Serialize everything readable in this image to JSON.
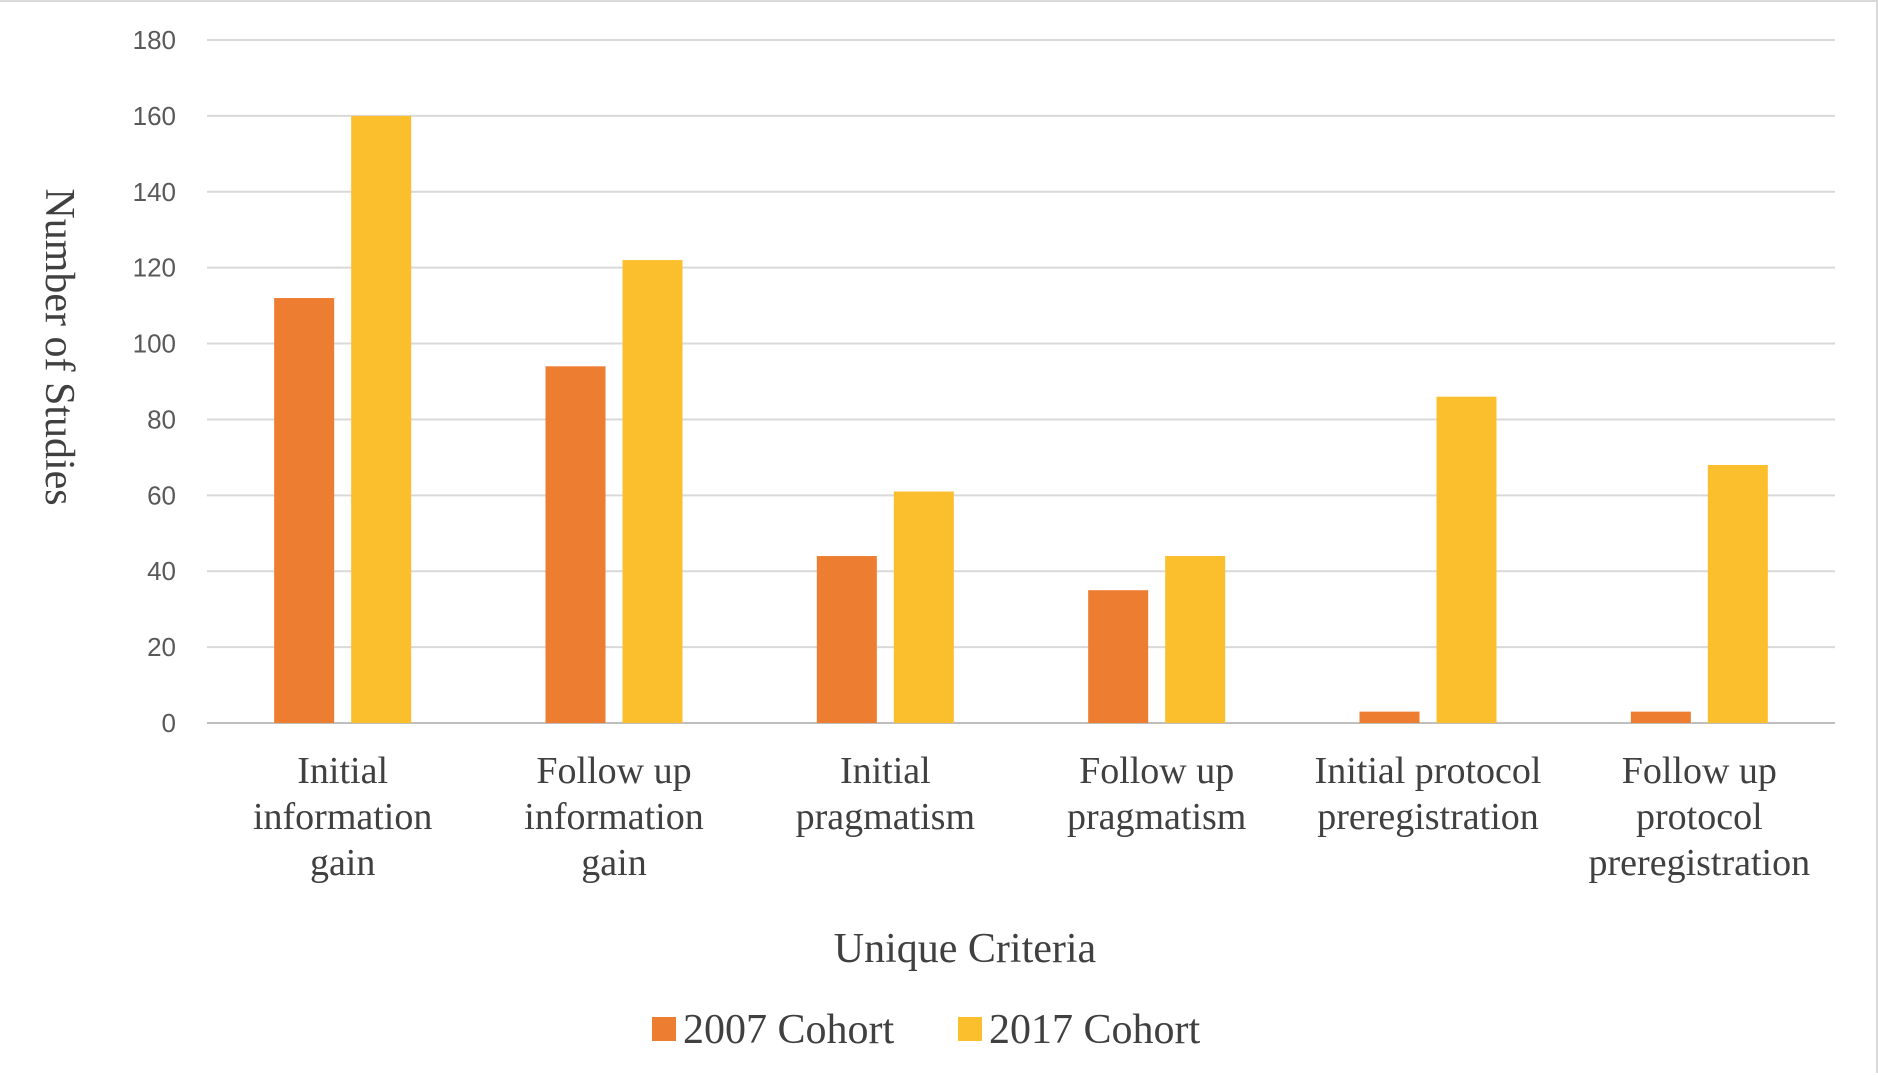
{
  "chart_data": {
    "type": "bar",
    "title": "",
    "xlabel": "Unique Criteria",
    "ylabel": "Number of Studies",
    "ylim": [
      0,
      180
    ],
    "yticks": [
      0,
      20,
      40,
      60,
      80,
      100,
      120,
      140,
      160,
      180
    ],
    "grid": true,
    "legend_position": "bottom",
    "categories": [
      [
        "Initial",
        "information",
        "gain"
      ],
      [
        "Follow up",
        "information",
        "gain"
      ],
      [
        "Initial",
        "pragmatism"
      ],
      [
        "Follow up",
        "pragmatism"
      ],
      [
        "Initial protocol",
        "preregistration"
      ],
      [
        "Follow up",
        "protocol",
        "preregistration"
      ]
    ],
    "series": [
      {
        "name": "2007 Cohort",
        "color": "#ED7D31",
        "values": [
          112,
          94,
          44,
          35,
          3,
          3
        ]
      },
      {
        "name": "2017 Cohort",
        "color": "#FBBF2E",
        "values": [
          160,
          122,
          61,
          44,
          86,
          68
        ]
      }
    ]
  }
}
